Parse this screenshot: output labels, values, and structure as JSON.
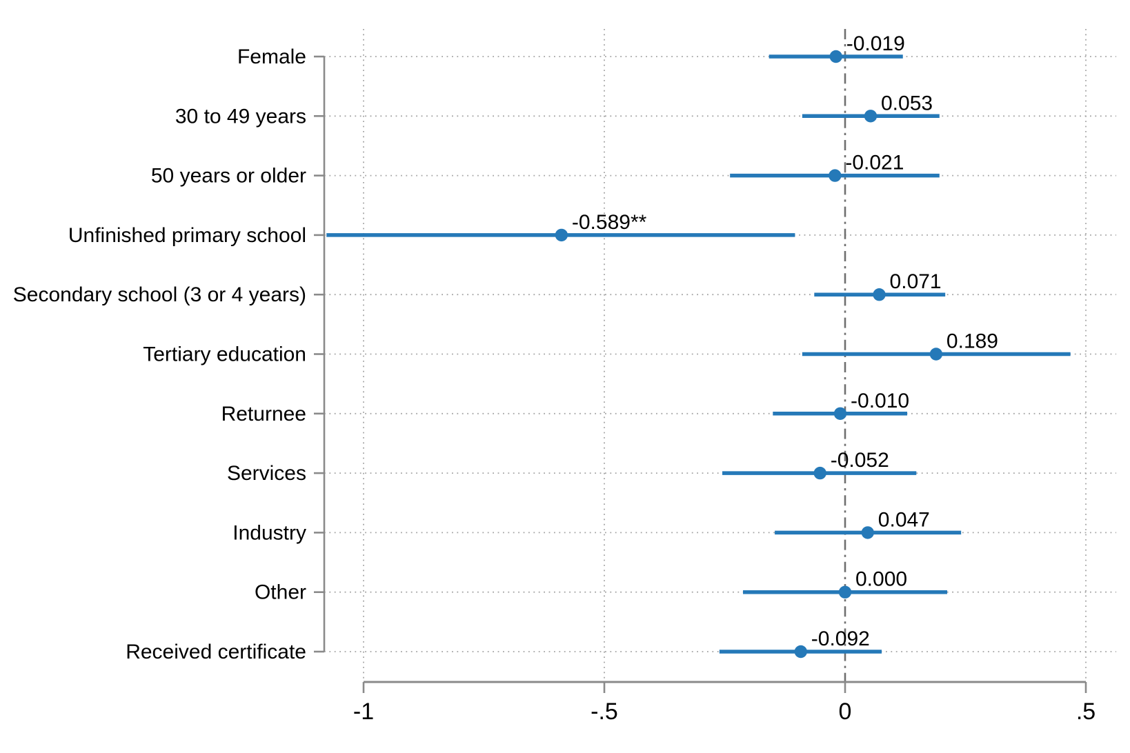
{
  "chart_data": {
    "type": "scatter",
    "subtype": "coefficient-plot-with-confidence-intervals",
    "orientation": "horizontal",
    "title": "",
    "xlabel": "",
    "ylabel": "",
    "grid": true,
    "legend": false,
    "xlim": [
      -1.1,
      0.56
    ],
    "reference_line_x": 0,
    "x_axis": {
      "ticks": [
        {
          "value": -1,
          "label": "-1"
        },
        {
          "value": -0.5,
          "label": "-.5"
        },
        {
          "value": 0,
          "label": "0"
        },
        {
          "value": 0.5,
          "label": ".5"
        }
      ]
    },
    "categories": [
      "Female",
      "30 to 49 years",
      "50 years or older",
      "Unfinished primary school",
      "Secondary school (3 or 4 years)",
      "Tertiary education",
      "Returnee",
      "Services",
      "Industry",
      "Other",
      "Received certificate"
    ],
    "points": [
      {
        "label": "Female",
        "estimate": -0.019,
        "ci_low": -0.158,
        "ci_high": 0.12,
        "value_label": "-0.019"
      },
      {
        "label": "30 to 49 years",
        "estimate": 0.053,
        "ci_low": -0.089,
        "ci_high": 0.196,
        "value_label": "0.053"
      },
      {
        "label": "50 years or older",
        "estimate": -0.021,
        "ci_low": -0.239,
        "ci_high": 0.196,
        "value_label": "-0.021"
      },
      {
        "label": "Unfinished primary school",
        "estimate": -0.589,
        "ci_low": -1.077,
        "ci_high": -0.104,
        "value_label": "-0.589**"
      },
      {
        "label": "Secondary school (3 or 4 years)",
        "estimate": 0.071,
        "ci_low": -0.064,
        "ci_high": 0.208,
        "value_label": "0.071"
      },
      {
        "label": "Tertiary education",
        "estimate": 0.189,
        "ci_low": -0.089,
        "ci_high": 0.468,
        "value_label": "0.189"
      },
      {
        "label": "Returnee",
        "estimate": -0.01,
        "ci_low": -0.15,
        "ci_high": 0.129,
        "value_label": "-0.010"
      },
      {
        "label": "Services",
        "estimate": -0.052,
        "ci_low": -0.255,
        "ci_high": 0.148,
        "value_label": "-0.052"
      },
      {
        "label": "Industry",
        "estimate": 0.047,
        "ci_low": -0.146,
        "ci_high": 0.241,
        "value_label": "0.047"
      },
      {
        "label": "Other",
        "estimate": 0.0,
        "ci_low": -0.212,
        "ci_high": 0.212,
        "value_label": "0.000"
      },
      {
        "label": "Received certificate",
        "estimate": -0.092,
        "ci_low": -0.261,
        "ci_high": 0.076,
        "value_label": "-0.092"
      }
    ],
    "colors": {
      "marker_and_ci": "#2579b8",
      "axis": "#8a8a8a",
      "gridline": "#a3a3a3",
      "zero_reference_line": "#6f6f6f",
      "text": "#000000",
      "background": "#ffffff"
    }
  }
}
